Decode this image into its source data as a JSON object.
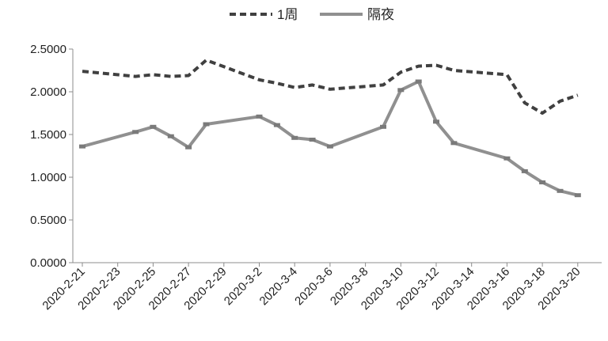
{
  "chart_data": {
    "type": "line",
    "title": "",
    "xlabel": "",
    "ylabel": "",
    "ylim": [
      0,
      2.5
    ],
    "y_ticks": [
      "0.0000",
      "0.5000",
      "1.0000",
      "1.5000",
      "2.0000",
      "2.5000"
    ],
    "x_tick_labels": [
      "2020-2-21",
      "2020-2-23",
      "2020-2-25",
      "2020-2-27",
      "2020-2-29",
      "2020-3-2",
      "2020-3-4",
      "2020-3-6",
      "2020-3-8",
      "2020-3-10",
      "2020-3-12",
      "2020-3-14",
      "2020-3-16",
      "2020-3-18",
      "2020-3-20"
    ],
    "grid": false,
    "legend_position": "top-center",
    "categories": [
      "2020-2-21",
      "2020-2-24",
      "2020-2-25",
      "2020-2-26",
      "2020-2-27",
      "2020-2-28",
      "2020-3-2",
      "2020-3-3",
      "2020-3-4",
      "2020-3-5",
      "2020-3-6",
      "2020-3-9",
      "2020-3-10",
      "2020-3-11",
      "2020-3-12",
      "2020-3-13",
      "2020-3-16",
      "2020-3-17",
      "2020-3-18",
      "2020-3-19",
      "2020-3-20"
    ],
    "series": [
      {
        "name": "1周",
        "color": "#404040",
        "dash": true,
        "values": [
          2.24,
          2.18,
          2.2,
          2.18,
          2.19,
          2.37,
          2.14,
          2.1,
          2.05,
          2.08,
          2.03,
          2.08,
          2.23,
          2.3,
          2.31,
          2.25,
          2.2,
          1.87,
          1.75,
          1.89,
          1.96
        ]
      },
      {
        "name": "隔夜",
        "color": "#909090",
        "dash": false,
        "values": [
          1.36,
          1.53,
          1.59,
          1.48,
          1.35,
          1.62,
          1.71,
          1.61,
          1.46,
          1.44,
          1.36,
          1.59,
          2.02,
          2.12,
          1.65,
          1.4,
          1.22,
          1.07,
          0.94,
          0.84,
          0.79
        ]
      }
    ]
  }
}
